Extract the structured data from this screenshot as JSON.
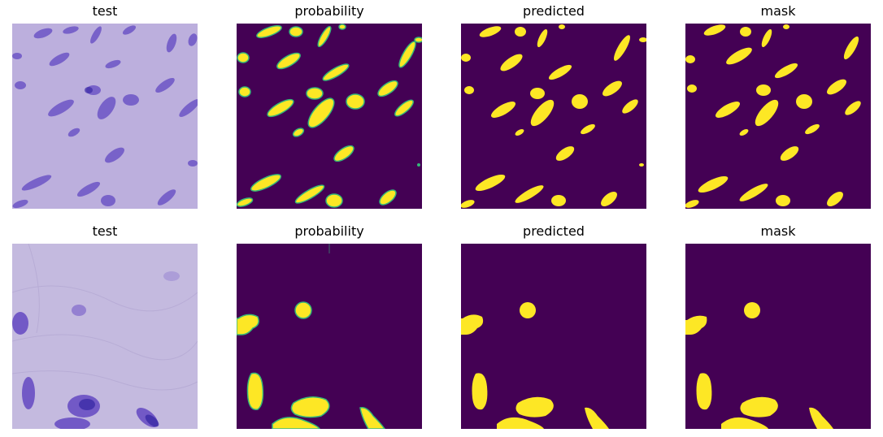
{
  "rows": [
    {
      "panels": [
        {
          "title": "test"
        },
        {
          "title": "probability"
        },
        {
          "title": "predicted"
        },
        {
          "title": "mask"
        }
      ]
    },
    {
      "panels": [
        {
          "title": "test"
        },
        {
          "title": "probability"
        },
        {
          "title": "predicted"
        },
        {
          "title": "mask"
        }
      ]
    }
  ],
  "colors": {
    "mask_background": "#440154",
    "mask_foreground": "#fde725",
    "probability_edge": "#35b779",
    "tissue_row1": "#b4a4d8",
    "tissue_row2": "#c2b7dc",
    "nucleus": "#6a4fc4",
    "nucleus_dark": "#3b2aa6"
  }
}
